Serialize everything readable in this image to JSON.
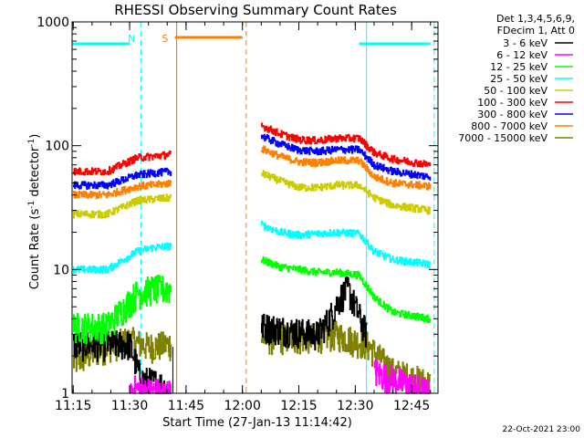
{
  "chart_data": {
    "type": "line",
    "title": "RHESSI Observing Summary Count Rates",
    "xlabel": "Start Time (27-Jan-13 11:14:42)",
    "ylabel": "Count Rate (s",
    "ylabel_sup1": "-1",
    "ylabel_mid": " detector",
    "ylabel_sup2": "-1",
    "ylabel_end": ")",
    "x_scale": "time",
    "y_scale": "log",
    "xlim": [
      "11:14:42",
      "12:52:00"
    ],
    "ylim": [
      1,
      1000
    ],
    "x_ticks": [
      "11:15",
      "11:30",
      "11:45",
      "12:00",
      "12:15",
      "12:30",
      "12:45"
    ],
    "y_ticks": [
      "1",
      "10",
      "100",
      "1000"
    ],
    "legend": {
      "placement": "right",
      "header_lines": [
        "Det 1,3,4,5,6,9,",
        "FDecim 1, Att 0"
      ]
    },
    "annotations": [
      {
        "text": "N",
        "at": "11:31"
      },
      {
        "text": "S",
        "at": "11:40"
      }
    ],
    "flags": {
      "night_bar": [
        [
          "11:14:42",
          "11:30"
        ],
        [
          "12:31",
          "12:50"
        ]
      ],
      "saa_bar": [
        [
          "11:42",
          "12:00"
        ]
      ],
      "cyan_dashed": [
        "11:33",
        "12:51"
      ],
      "cyan_solid": [
        "12:33"
      ],
      "orange_solid": [
        "11:42:30"
      ],
      "orange_dashed": [
        "12:01"
      ],
      "black_solid": [
        "11:41:30"
      ]
    },
    "gaps": [
      [
        "11:41:30",
        "12:05"
      ]
    ],
    "series": [
      {
        "name": "3 - 6 keV",
        "color": "#000000",
        "segments": [
          [
            [
              "11:15",
              2.5
            ],
            [
              "11:30",
              2.5
            ],
            [
              "11:33",
              1.3
            ],
            [
              "11:38",
              1.2
            ],
            [
              "11:41",
              1.0
            ]
          ],
          [
            [
              "12:05",
              3.5
            ],
            [
              "12:20",
              3.0
            ],
            [
              "12:23",
              4.0
            ],
            [
              "12:26",
              6.0
            ],
            [
              "12:28",
              7.0
            ],
            [
              "12:30",
              5.0
            ],
            [
              "12:33",
              3.0
            ]
          ]
        ]
      },
      {
        "name": "6 - 12 keV",
        "color": "#ff00ff",
        "segments": [
          [
            [
              "11:30",
              1.1
            ],
            [
              "11:41",
              1.0
            ]
          ],
          [
            [
              "12:35",
              1.5
            ],
            [
              "12:43",
              1.2
            ],
            [
              "12:50",
              1.0
            ]
          ]
        ]
      },
      {
        "name": "12 - 25 keV",
        "color": "#00ff00",
        "segments": [
          [
            [
              "11:15",
              3.5
            ],
            [
              "11:24",
              3.5
            ],
            [
              "11:32",
              6.5
            ],
            [
              "11:36",
              7.0
            ],
            [
              "11:41",
              7.0
            ]
          ],
          [
            [
              "12:05",
              12.0
            ],
            [
              "12:10",
              10.5
            ],
            [
              "12:15",
              10.0
            ],
            [
              "12:20",
              9.5
            ],
            [
              "12:25",
              9.5
            ],
            [
              "12:31",
              9.0
            ],
            [
              "12:35",
              6.0
            ],
            [
              "12:40",
              4.5
            ],
            [
              "12:50",
              4.0
            ]
          ]
        ]
      },
      {
        "name": "25 - 50 keV",
        "color": "#00ffff",
        "segments": [
          [
            [
              "11:15",
              10.0
            ],
            [
              "11:24",
              10.0
            ],
            [
              "11:32",
              14.0
            ],
            [
              "11:36",
              15.0
            ],
            [
              "11:41",
              15.5
            ]
          ],
          [
            [
              "12:05",
              23.0
            ],
            [
              "12:10",
              20.0
            ],
            [
              "12:15",
              19.0
            ],
            [
              "12:20",
              19.5
            ],
            [
              "12:25",
              20.0
            ],
            [
              "12:31",
              19.5
            ],
            [
              "12:35",
              14.0
            ],
            [
              "12:40",
              12.0
            ],
            [
              "12:50",
              11.0
            ]
          ]
        ]
      },
      {
        "name": "50 - 100 keV",
        "color": "#cccc00",
        "segments": [
          [
            [
              "11:15",
              28.0
            ],
            [
              "11:24",
              28.0
            ],
            [
              "11:32",
              36.0
            ],
            [
              "11:36",
              37.0
            ],
            [
              "11:41",
              38.0
            ]
          ],
          [
            [
              "12:05",
              60.0
            ],
            [
              "12:10",
              52.0
            ],
            [
              "12:15",
              46.0
            ],
            [
              "12:20",
              46.0
            ],
            [
              "12:25",
              48.0
            ],
            [
              "12:31",
              48.0
            ],
            [
              "12:35",
              38.0
            ],
            [
              "12:40",
              33.0
            ],
            [
              "12:50",
              30.0
            ]
          ]
        ]
      },
      {
        "name": "100 - 300 keV",
        "color": "#ff0000",
        "segments": [
          [
            [
              "11:15",
              62.0
            ],
            [
              "11:24",
              62.0
            ],
            [
              "11:32",
              80.0
            ],
            [
              "11:36",
              82.0
            ],
            [
              "11:41",
              85.0
            ]
          ],
          [
            [
              "12:05",
              145.0
            ],
            [
              "12:10",
              125.0
            ],
            [
              "12:15",
              112.0
            ],
            [
              "12:20",
              110.0
            ],
            [
              "12:25",
              115.0
            ],
            [
              "12:31",
              115.0
            ],
            [
              "12:35",
              88.0
            ],
            [
              "12:40",
              78.0
            ],
            [
              "12:50",
              70.0
            ]
          ]
        ]
      },
      {
        "name": "300 - 800 keV",
        "color": "#0000ff",
        "segments": [
          [
            [
              "11:15",
              48.0
            ],
            [
              "11:24",
              48.0
            ],
            [
              "11:32",
              58.0
            ],
            [
              "11:36",
              60.0
            ],
            [
              "11:41",
              62.0
            ]
          ],
          [
            [
              "12:05",
              120.0
            ],
            [
              "12:10",
              103.0
            ],
            [
              "12:15",
              92.0
            ],
            [
              "12:20",
              90.0
            ],
            [
              "12:25",
              93.0
            ],
            [
              "12:31",
              93.0
            ],
            [
              "12:35",
              70.0
            ],
            [
              "12:40",
              62.0
            ],
            [
              "12:50",
              56.0
            ]
          ]
        ]
      },
      {
        "name": "800 - 7000 keV",
        "color": "#ff8000",
        "segments": [
          [
            [
              "11:15",
              40.0
            ],
            [
              "11:24",
              40.0
            ],
            [
              "11:32",
              47.0
            ],
            [
              "11:36",
              48.0
            ],
            [
              "11:41",
              50.0
            ]
          ],
          [
            [
              "12:05",
              95.0
            ],
            [
              "12:10",
              82.0
            ],
            [
              "12:15",
              74.0
            ],
            [
              "12:20",
              73.0
            ],
            [
              "12:25",
              76.0
            ],
            [
              "12:31",
              76.0
            ],
            [
              "12:35",
              56.0
            ],
            [
              "12:40",
              50.0
            ],
            [
              "12:50",
              47.0
            ]
          ]
        ]
      },
      {
        "name": "7000 - 15000 keV",
        "color": "#808000",
        "segments": [
          [
            [
              "11:15",
              1.8
            ],
            [
              "11:24",
              2.4
            ],
            [
              "11:30",
              2.7
            ],
            [
              "11:35",
              2.4
            ],
            [
              "11:41",
              2.5
            ]
          ],
          [
            [
              "12:05",
              2.8
            ],
            [
              "12:15",
              2.8
            ],
            [
              "12:25",
              3.0
            ],
            [
              "12:33",
              2.5
            ],
            [
              "12:40",
              1.5
            ],
            [
              "12:50",
              1.2
            ]
          ]
        ]
      }
    ]
  },
  "footer_timestamp": "22-Oct-2021 23:00"
}
